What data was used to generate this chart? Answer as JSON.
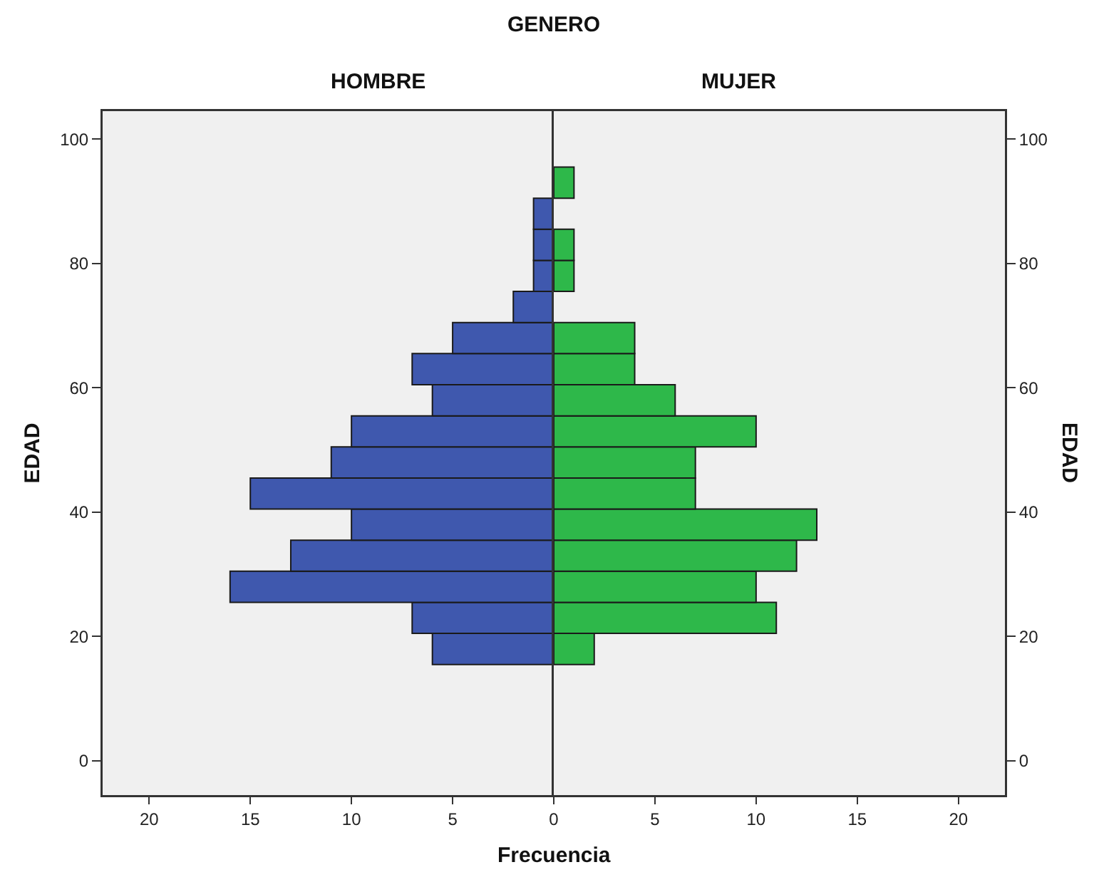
{
  "chart_data": [
    {
      "type": "histogram",
      "orientation": "horizontal",
      "title": "HOMBRE",
      "ylabel": "EDAD",
      "annotations": [
        "GENERO",
        "Frecuencia"
      ],
      "bins": [
        15.5,
        20.5,
        25.5,
        30.5,
        35.5,
        40.5,
        45.5,
        50.5,
        55.5,
        60.5,
        65.5,
        70.5,
        75.5,
        80.5,
        85.5,
        90.5,
        95.5
      ],
      "values": [
        6,
        7,
        16,
        13,
        10,
        15,
        11,
        10,
        6,
        7,
        5,
        2,
        1,
        1,
        1,
        0
      ],
      "color": "#3f58ae",
      "xlim": [
        22.3,
        0
      ],
      "xticks": [
        20,
        15,
        10,
        5,
        0
      ],
      "ylim": [
        -5.5,
        104.5
      ],
      "yticks": [
        0,
        20,
        40,
        60,
        80,
        100
      ],
      "grid": false
    },
    {
      "type": "histogram",
      "orientation": "horizontal",
      "title": "MUJER",
      "ylabel": "EDAD",
      "bins": [
        15.5,
        20.5,
        25.5,
        30.5,
        35.5,
        40.5,
        45.5,
        50.5,
        55.5,
        60.5,
        65.5,
        70.5,
        75.5,
        80.5,
        85.5,
        90.5,
        95.5
      ],
      "values": [
        2,
        11,
        10,
        12,
        13,
        7,
        7,
        10,
        6,
        4,
        4,
        0,
        1,
        1,
        0,
        1
      ],
      "color": "#2eb84a",
      "xlim": [
        0,
        22.3
      ],
      "xticks": [
        5,
        10,
        15,
        20
      ],
      "ylim": [
        -5.5,
        104.5
      ],
      "yticks": [
        0,
        20,
        40,
        60,
        80,
        100
      ],
      "grid": false
    }
  ]
}
